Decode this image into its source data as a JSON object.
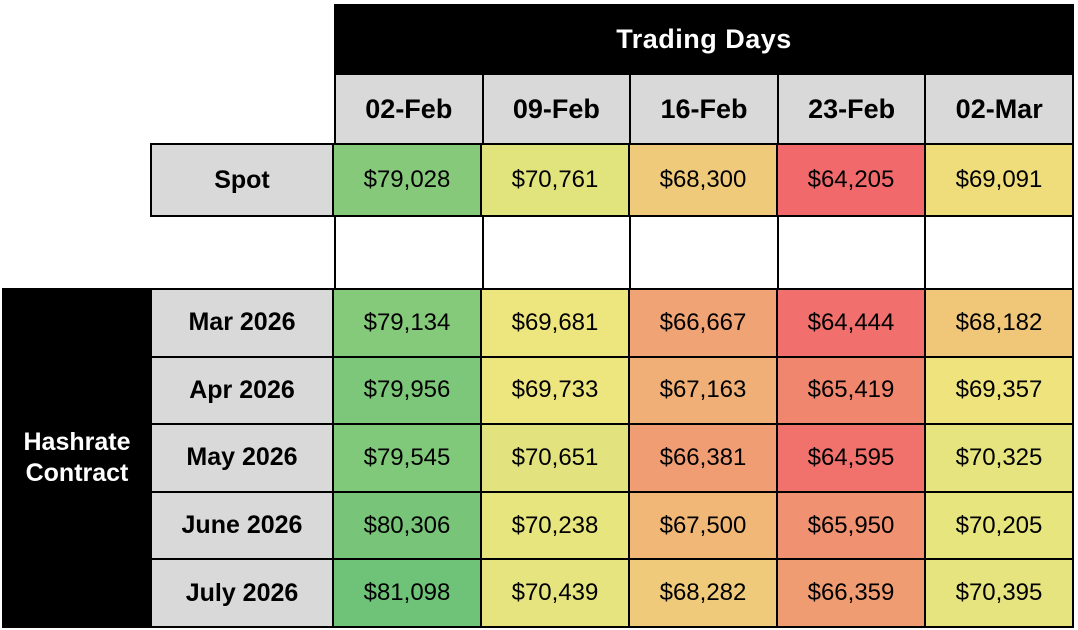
{
  "header": {
    "title": "Trading Days"
  },
  "row_group_label": "Hashrate Contract",
  "chart_data": {
    "type": "heatmap",
    "title": "Trading Days",
    "columns": [
      "02-Feb",
      "09-Feb",
      "16-Feb",
      "23-Feb",
      "02-Mar"
    ],
    "rows": [
      "Spot",
      "Mar 2026",
      "Apr 2026",
      "May 2026",
      "June 2026",
      "July 2026"
    ],
    "row_group": "Hashrate Contract",
    "values": [
      [
        79028,
        70761,
        68300,
        64205,
        69091
      ],
      [
        79134,
        69681,
        66667,
        64444,
        68182
      ],
      [
        79956,
        69733,
        67163,
        65419,
        69357
      ],
      [
        79545,
        70651,
        66381,
        64595,
        70325
      ],
      [
        80306,
        70238,
        67500,
        65950,
        70205
      ],
      [
        81098,
        70439,
        68282,
        66359,
        70395
      ]
    ],
    "value_prefix": "$",
    "layout": "Spot row is separated from the five Hashrate Contract rows by an empty white bordered row",
    "color_scale": {
      "low": "#F1696B",
      "mid": "#EFE77E",
      "high": "#6FC379",
      "low_at": "min",
      "mid_at": "median",
      "high_at": "max"
    },
    "label_bg": "#D9D9D9",
    "header_bg": "#000000",
    "header_text_color": "#FFFFFF",
    "grid_line_color": "#000000",
    "empty_row_bg": "#FFFFFF"
  }
}
